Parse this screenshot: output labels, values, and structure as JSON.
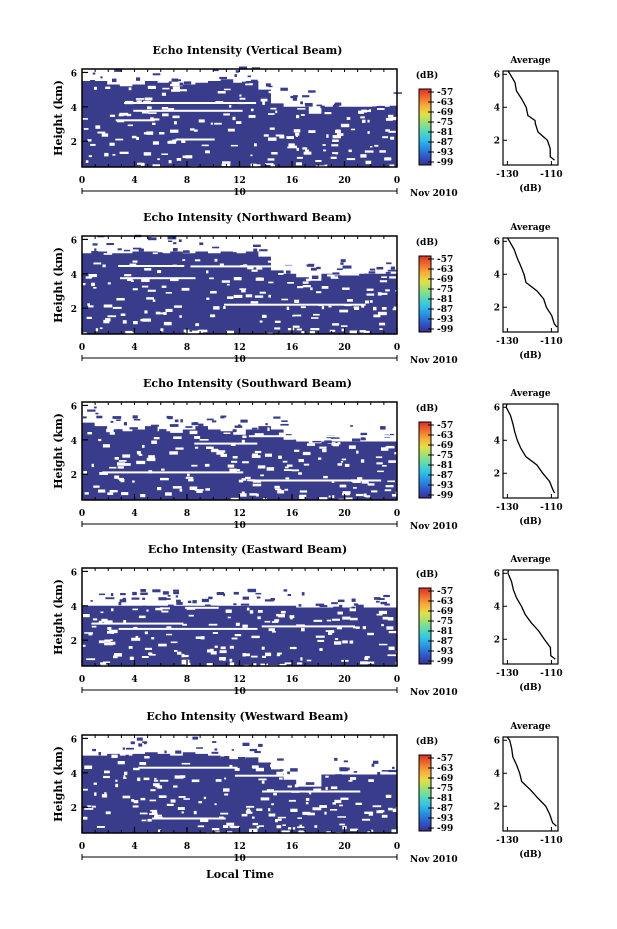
{
  "figure": {
    "xlabel": "Local Time",
    "date_label": "Nov 2010",
    "day_label": "10",
    "colorbar_unit": "(dB)",
    "colorbar_ticks": [
      "-57",
      "-63",
      "-69",
      "-75",
      "-81",
      "-87",
      "-93",
      "-99"
    ],
    "avg_title": "Average",
    "avg_xlabel": "(dB)",
    "height_label": "Height (km)"
  },
  "colors": {
    "fill": "#383c8a",
    "colormap": [
      "#3b2d8f",
      "#2f58c7",
      "#2b8be0",
      "#2fc0e8",
      "#5ad7b7",
      "#9be078",
      "#e3e047",
      "#f6ae3b",
      "#f06c2d",
      "#d8322b"
    ]
  },
  "chart_data": [
    {
      "type": "heatmap",
      "title": "Echo Intensity (Vertical Beam)",
      "xlabel": "",
      "ylabel": "Height (km)",
      "xlim": [
        0,
        24
      ],
      "xticks": [
        "0",
        "4",
        "8",
        "12",
        "16",
        "20",
        "0"
      ],
      "ylim": [
        0.5,
        6.2
      ],
      "yticks": [
        "2",
        "4",
        "6"
      ],
      "colorbar": {
        "label": "(dB)",
        "range": [
          -99,
          -57
        ],
        "ticks": [
          -57,
          -63,
          -69,
          -75,
          -81,
          -87,
          -93,
          -99
        ]
      },
      "echo_top_km": [
        5.5,
        5.5,
        5.3,
        5.2,
        5.3,
        5.5,
        5.4,
        5.2,
        5.3,
        5.4,
        5.5,
        5.6,
        5.4,
        5.5,
        5.0,
        4.2,
        4.0,
        4.0,
        3.6,
        4.0,
        4.0,
        4.0,
        4.0,
        4.0,
        4.0
      ],
      "average_profile": {
        "type": "line",
        "title": "Average",
        "xlabel": "(dB)",
        "xlim": [
          -132,
          -107
        ],
        "xticks": [
          -130,
          -110
        ],
        "ylim": [
          0.5,
          6.2
        ],
        "height_km": [
          0.8,
          1.0,
          1.5,
          2.0,
          2.5,
          3.0,
          3.2,
          3.5,
          4.0,
          4.5,
          5.0,
          5.5,
          6.0,
          6.2
        ],
        "db": [
          -108,
          -110,
          -111,
          -112,
          -116,
          -117,
          -118,
          -121,
          -122,
          -124,
          -126,
          -127,
          -129,
          -130
        ]
      }
    },
    {
      "type": "heatmap",
      "title": "Echo Intensity (Northward Beam)",
      "xlabel": "",
      "ylabel": "Height (km)",
      "xlim": [
        0,
        24
      ],
      "xticks": [
        "0",
        "4",
        "8",
        "12",
        "16",
        "20",
        "0"
      ],
      "ylim": [
        0.5,
        6.2
      ],
      "yticks": [
        "2",
        "4",
        "6"
      ],
      "colorbar": {
        "label": "(dB)",
        "range": [
          -99,
          -57
        ],
        "ticks": [
          -57,
          -63,
          -69,
          -75,
          -81,
          -87,
          -93,
          -99
        ]
      },
      "echo_top_km": [
        5.2,
        5.3,
        5.2,
        5.2,
        5.3,
        5.3,
        5.2,
        5.3,
        5.2,
        5.3,
        5.2,
        5.3,
        5.2,
        5.3,
        5.0,
        4.2,
        4.0,
        3.8,
        3.6,
        4.0,
        3.9,
        3.9,
        4.0,
        4.0,
        4.0
      ],
      "average_profile": {
        "type": "line",
        "title": "Average",
        "xlabel": "(dB)",
        "xlim": [
          -132,
          -107
        ],
        "xticks": [
          -130,
          -110
        ],
        "ylim": [
          0.5,
          6.2
        ],
        "height_km": [
          0.8,
          1.0,
          1.5,
          2.0,
          2.5,
          3.0,
          3.5,
          4.0,
          4.5,
          5.0,
          5.5,
          6.0,
          6.2
        ],
        "db": [
          -108,
          -109,
          -110,
          -112,
          -114,
          -117,
          -121,
          -122,
          -124,
          -126,
          -127,
          -129,
          -130
        ]
      }
    },
    {
      "type": "heatmap",
      "title": "Echo Intensity (Southward Beam)",
      "xlabel": "",
      "ylabel": "Height (km)",
      "xlim": [
        0,
        24
      ],
      "xticks": [
        "0",
        "4",
        "8",
        "12",
        "16",
        "20",
        "0"
      ],
      "ylim": [
        0.5,
        6.2
      ],
      "yticks": [
        "2",
        "4",
        "6"
      ],
      "colorbar": {
        "label": "(dB)",
        "range": [
          -99,
          -57
        ],
        "ticks": [
          -57,
          -63,
          -69,
          -75,
          -81,
          -87,
          -93,
          -99
        ]
      },
      "echo_top_km": [
        5.0,
        4.8,
        4.6,
        4.5,
        4.6,
        4.8,
        4.5,
        4.4,
        4.6,
        4.8,
        4.6,
        4.5,
        4.3,
        4.6,
        4.8,
        4.6,
        4.0,
        3.9,
        3.8,
        3.9,
        3.9,
        3.9,
        3.9,
        3.9,
        3.9
      ],
      "average_profile": {
        "type": "line",
        "title": "Average",
        "xlabel": "(dB)",
        "xlim": [
          -132,
          -107
        ],
        "xticks": [
          -130,
          -110
        ],
        "ylim": [
          0.5,
          6.2
        ],
        "height_km": [
          0.8,
          1.0,
          1.5,
          2.0,
          2.5,
          3.0,
          3.5,
          4.0,
          4.5,
          5.0,
          5.5,
          6.0,
          6.2
        ],
        "db": [
          -108,
          -109,
          -111,
          -114,
          -117,
          -121,
          -124,
          -126,
          -127,
          -128,
          -129,
          -130,
          -130
        ]
      }
    },
    {
      "type": "heatmap",
      "title": "Echo Intensity (Eastward Beam)",
      "xlabel": "",
      "ylabel": "Height (km)",
      "xlim": [
        0,
        24
      ],
      "xticks": [
        "0",
        "4",
        "8",
        "12",
        "16",
        "20",
        "0"
      ],
      "ylim": [
        0.5,
        6.2
      ],
      "yticks": [
        "2",
        "4",
        "6"
      ],
      "colorbar": {
        "label": "(dB)",
        "range": [
          -99,
          -57
        ],
        "ticks": [
          -57,
          -63,
          -69,
          -75,
          -81,
          -87,
          -93,
          -99
        ]
      },
      "echo_top_km": [
        4.0,
        4.0,
        4.0,
        4.0,
        4.0,
        4.0,
        4.0,
        4.0,
        4.0,
        4.0,
        4.0,
        4.0,
        4.0,
        4.0,
        4.0,
        4.0,
        4.0,
        3.9,
        3.9,
        3.9,
        3.9,
        3.9,
        3.9,
        3.9,
        3.9
      ],
      "average_profile": {
        "type": "line",
        "title": "Average",
        "xlabel": "(dB)",
        "xlim": [
          -132,
          -107
        ],
        "xticks": [
          -130,
          -110
        ],
        "ylim": [
          0.5,
          6.2
        ],
        "height_km": [
          0.8,
          1.0,
          1.5,
          2.0,
          2.5,
          3.0,
          3.5,
          4.0,
          4.5,
          5.0,
          5.5,
          6.0,
          6.2
        ],
        "db": [
          -108,
          -110,
          -111,
          -113,
          -116,
          -119,
          -122,
          -124,
          -126,
          -127,
          -128,
          -130,
          -130
        ]
      }
    },
    {
      "type": "heatmap",
      "title": "Echo Intensity (Westward Beam)",
      "xlabel": "Local Time",
      "ylabel": "Height (km)",
      "xlim": [
        0,
        24
      ],
      "xticks": [
        "0",
        "4",
        "8",
        "12",
        "16",
        "20",
        "0"
      ],
      "ylim": [
        0.5,
        6.2
      ],
      "yticks": [
        "2",
        "4",
        "6"
      ],
      "colorbar": {
        "label": "(dB)",
        "range": [
          -99,
          -57
        ],
        "ticks": [
          -57,
          -63,
          -69,
          -75,
          -81,
          -87,
          -93,
          -99
        ]
      },
      "echo_top_km": [
        5.0,
        5.0,
        5.1,
        5.0,
        5.1,
        5.2,
        5.1,
        5.0,
        5.2,
        5.1,
        5.0,
        4.8,
        4.8,
        4.9,
        4.6,
        4.2,
        3.6,
        3.2,
        3.2,
        3.9,
        3.9,
        3.9,
        3.9,
        3.9,
        3.9
      ],
      "average_profile": {
        "type": "line",
        "title": "Average",
        "xlabel": "(dB)",
        "xlim": [
          -132,
          -107
        ],
        "xticks": [
          -130,
          -110
        ],
        "ylim": [
          0.5,
          6.2
        ],
        "height_km": [
          0.8,
          1.0,
          1.5,
          2.0,
          2.5,
          3.0,
          3.5,
          4.0,
          4.5,
          5.0,
          5.5,
          6.0,
          6.2
        ],
        "db": [
          -108,
          -110,
          -111,
          -113,
          -116,
          -119,
          -123,
          -124,
          -126,
          -127,
          -128,
          -129,
          -130
        ]
      }
    }
  ]
}
